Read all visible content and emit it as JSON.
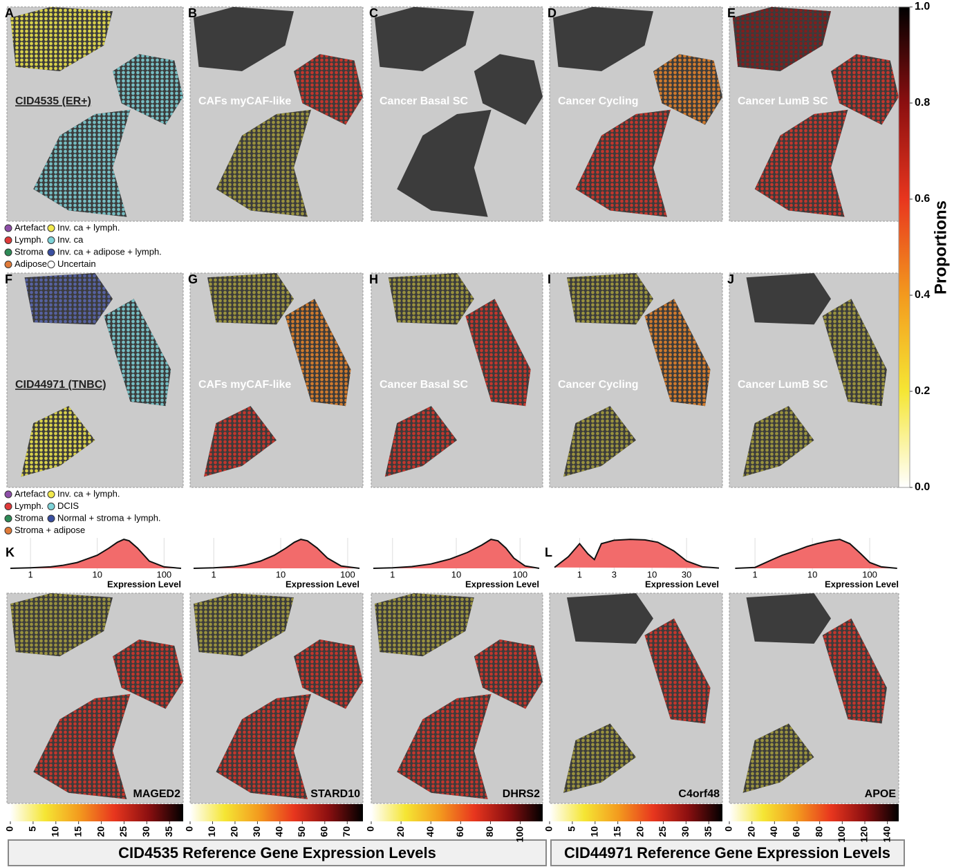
{
  "panels": {
    "row1": {
      "letters": [
        "A",
        "B",
        "C",
        "D",
        "E"
      ],
      "labels": [
        "CID4535 (ER+)",
        "CAFs myCAF-like",
        "Cancer Basal SC",
        "Cancer Cycling",
        "Cancer LumB SC"
      ]
    },
    "row2": {
      "letters": [
        "F",
        "G",
        "H",
        "I",
        "J"
      ],
      "labels": [
        "CID44971 (TNBC)",
        "CAFs myCAF-like",
        "Cancer Basal SC",
        "Cancer Cycling",
        "Cancer LumB SC"
      ]
    },
    "row3_letters": [
      "K",
      "L"
    ]
  },
  "legends": [
    {
      "items": [
        {
          "label": "Artefact",
          "color": "#8e4fa8"
        },
        {
          "label": "Lymph.",
          "color": "#e03a3a"
        },
        {
          "label": "Stroma",
          "color": "#2e8b57"
        },
        {
          "label": "Adipose",
          "color": "#e07b39"
        },
        {
          "label": "Inv. ca + lymph.",
          "color": "#f2e94e"
        },
        {
          "label": "Inv. ca",
          "color": "#7fd3d8"
        },
        {
          "label": "Inv. ca + adipose + lymph.",
          "color": "#3a4fa0"
        },
        {
          "label": "Uncertain",
          "color": "#ffffff"
        }
      ]
    },
    {
      "items": [
        {
          "label": "Artefact",
          "color": "#8e4fa8"
        },
        {
          "label": "Lymph.",
          "color": "#e03a3a"
        },
        {
          "label": "Stroma",
          "color": "#2e8b57"
        },
        {
          "label": "Stroma + adipose",
          "color": "#e07b39"
        },
        {
          "label": "Inv. ca + lymph.",
          "color": "#f2e94e"
        },
        {
          "label": "DCIS",
          "color": "#7fd3d8"
        },
        {
          "label": "Normal + stroma + lymph.",
          "color": "#3a4fa0"
        }
      ]
    }
  ],
  "chart_data": [
    {
      "type": "colorbar",
      "title": "Proportions",
      "orientation": "vertical",
      "ylim": [
        0,
        1
      ],
      "yticks": [
        {
          "value": 0,
          "label": "0.0"
        },
        0.2,
        0.4,
        0.6,
        0.8,
        {
          "value": 1,
          "label": "1.0"
        }
      ],
      "colors": [
        "#ffffff",
        "#f5e634",
        "#f39a1e",
        "#e8361e",
        "#8b0f10",
        "#000000"
      ]
    },
    {
      "type": "area",
      "xlabel": "Expression Level",
      "log_x": true,
      "x": [
        0.5,
        1,
        2,
        3,
        5,
        10,
        15,
        20,
        25,
        30,
        40,
        60,
        100,
        180
      ],
      "values": [
        0,
        0.02,
        0.05,
        0.1,
        0.2,
        0.45,
        0.7,
        0.9,
        1.0,
        0.95,
        0.7,
        0.25,
        0.05,
        0
      ],
      "xlim": [
        0.5,
        180
      ],
      "ylim": [
        0,
        1.05
      ],
      "xticks": [
        1,
        10,
        100
      ],
      "color": "#f26b6b"
    },
    {
      "type": "area",
      "xlabel": "Expression Level",
      "log_x": true,
      "x": [
        0.5,
        1,
        2,
        3,
        5,
        8,
        12,
        16,
        20,
        25,
        35,
        50,
        80,
        150
      ],
      "values": [
        0,
        0.02,
        0.06,
        0.12,
        0.25,
        0.45,
        0.7,
        0.9,
        1.0,
        0.95,
        0.7,
        0.35,
        0.08,
        0
      ],
      "xlim": [
        0.5,
        150
      ],
      "ylim": [
        0,
        1.05
      ],
      "xticks": [
        1,
        10,
        100
      ],
      "color": "#f26b6b"
    },
    {
      "type": "area",
      "xlabel": "Expression Level",
      "log_x": true,
      "x": [
        0.5,
        1,
        2,
        4,
        8,
        15,
        25,
        35,
        45,
        60,
        80,
        120,
        200
      ],
      "values": [
        0,
        0.02,
        0.06,
        0.15,
        0.32,
        0.55,
        0.8,
        1.0,
        0.95,
        0.7,
        0.35,
        0.08,
        0
      ],
      "xlim": [
        0.5,
        200
      ],
      "ylim": [
        0,
        1.05
      ],
      "xticks": [
        1,
        10,
        100
      ],
      "color": "#f26b6b"
    },
    {
      "type": "area",
      "xlabel": "Expression Level",
      "log_x": true,
      "x": [
        0.45,
        0.7,
        1,
        1.3,
        1.6,
        2,
        3,
        5,
        8,
        12,
        20,
        30,
        50,
        84
      ],
      "values": [
        0.03,
        0.4,
        0.85,
        0.5,
        0.3,
        0.85,
        0.97,
        1.0,
        0.98,
        0.9,
        0.6,
        0.25,
        0.05,
        0.01
      ],
      "xlim": [
        0.43,
        84
      ],
      "ylim": [
        0,
        1.05
      ],
      "xticks": [
        1,
        3,
        10,
        30
      ],
      "color": "#f26b6b"
    },
    {
      "type": "area",
      "xlabel": "Expression Level",
      "log_x": true,
      "x": [
        0.45,
        1,
        2,
        3,
        5,
        8,
        12,
        20,
        30,
        45,
        70,
        100,
        160,
        300
      ],
      "values": [
        0,
        0.03,
        0.3,
        0.45,
        0.6,
        0.75,
        0.85,
        0.95,
        1.0,
        0.85,
        0.5,
        0.2,
        0.05,
        0
      ],
      "xlim": [
        0.41,
        320
      ],
      "ylim": [
        0,
        1.05
      ],
      "xticks": [
        1,
        10,
        100
      ],
      "color": "#f26b6b"
    },
    {
      "type": "colorbar",
      "title": "MAGED2",
      "orientation": "horizontal",
      "xlim": [
        0,
        38
      ],
      "xticks": [
        0,
        5,
        10,
        15,
        20,
        25,
        30,
        35
      ],
      "colors": [
        "#ffffff",
        "#f5e634",
        "#f39a1e",
        "#e8361e",
        "#8b0f10",
        "#000000"
      ]
    },
    {
      "type": "colorbar",
      "title": "STARD10",
      "orientation": "horizontal",
      "xlim": [
        0,
        77
      ],
      "xticks": [
        0,
        10,
        20,
        30,
        40,
        50,
        60,
        70
      ],
      "colors": [
        "#ffffff",
        "#f5e634",
        "#f39a1e",
        "#e8361e",
        "#8b0f10",
        "#000000"
      ]
    },
    {
      "type": "colorbar",
      "title": "DHRS2",
      "orientation": "horizontal",
      "xlim": [
        0,
        115
      ],
      "xticks": [
        0,
        20,
        40,
        60,
        80,
        100
      ],
      "colors": [
        "#ffffff",
        "#f5e634",
        "#f39a1e",
        "#e8361e",
        "#8b0f10",
        "#000000"
      ]
    },
    {
      "type": "colorbar",
      "title": "C4orf48",
      "orientation": "horizontal",
      "xlim": [
        0,
        38
      ],
      "xticks": [
        0,
        5,
        10,
        15,
        20,
        25,
        30,
        35
      ],
      "colors": [
        "#ffffff",
        "#f5e634",
        "#f39a1e",
        "#e8361e",
        "#8b0f10",
        "#000000"
      ]
    },
    {
      "type": "colorbar",
      "title": "APOE",
      "orientation": "horizontal",
      "xlim": [
        0,
        150
      ],
      "xticks": [
        0,
        20,
        40,
        60,
        80,
        100,
        120,
        140
      ],
      "colors": [
        "#ffffff",
        "#f5e634",
        "#f39a1e",
        "#e8361e",
        "#8b0f10",
        "#000000"
      ]
    }
  ],
  "footer": [
    "CID4535 Reference Gene Expression Levels",
    "CID44971 Reference Gene Expression Levels"
  ]
}
